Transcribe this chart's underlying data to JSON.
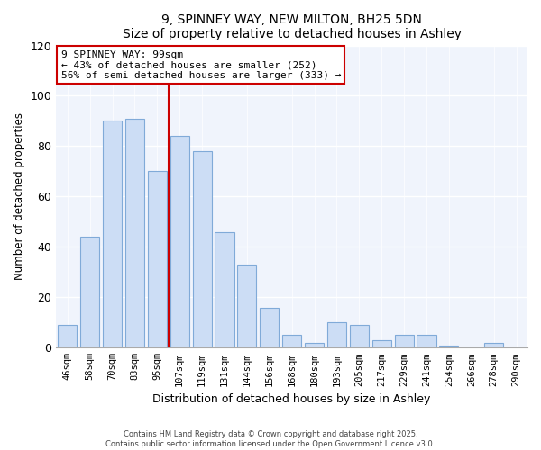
{
  "title": "9, SPINNEY WAY, NEW MILTON, BH25 5DN",
  "subtitle": "Size of property relative to detached houses in Ashley",
  "xlabel": "Distribution of detached houses by size in Ashley",
  "ylabel": "Number of detached properties",
  "bar_color": "#ccddf5",
  "bar_edge_color": "#80aad8",
  "categories": [
    "46sqm",
    "58sqm",
    "70sqm",
    "83sqm",
    "95sqm",
    "107sqm",
    "119sqm",
    "131sqm",
    "144sqm",
    "156sqm",
    "168sqm",
    "180sqm",
    "193sqm",
    "205sqm",
    "217sqm",
    "229sqm",
    "241sqm",
    "254sqm",
    "266sqm",
    "278sqm",
    "290sqm"
  ],
  "values": [
    9,
    44,
    90,
    91,
    70,
    84,
    78,
    46,
    33,
    16,
    5,
    2,
    10,
    9,
    3,
    5,
    5,
    1,
    0,
    2,
    0
  ],
  "ylim": [
    0,
    120
  ],
  "yticks": [
    0,
    20,
    40,
    60,
    80,
    100,
    120
  ],
  "vline_x_index": 4,
  "vline_color": "#cc0000",
  "annotation_title": "9 SPINNEY WAY: 99sqm",
  "annotation_line1": "← 43% of detached houses are smaller (252)",
  "annotation_line2": "56% of semi-detached houses are larger (333) →",
  "annotation_box_color": "#ffffff",
  "annotation_box_edge": "#cc0000",
  "footer1": "Contains HM Land Registry data © Crown copyright and database right 2025.",
  "footer2": "Contains public sector information licensed under the Open Government Licence v3.0.",
  "background_color": "#ffffff",
  "plot_bg_color": "#f0f4fc",
  "grid_color": "#ffffff"
}
